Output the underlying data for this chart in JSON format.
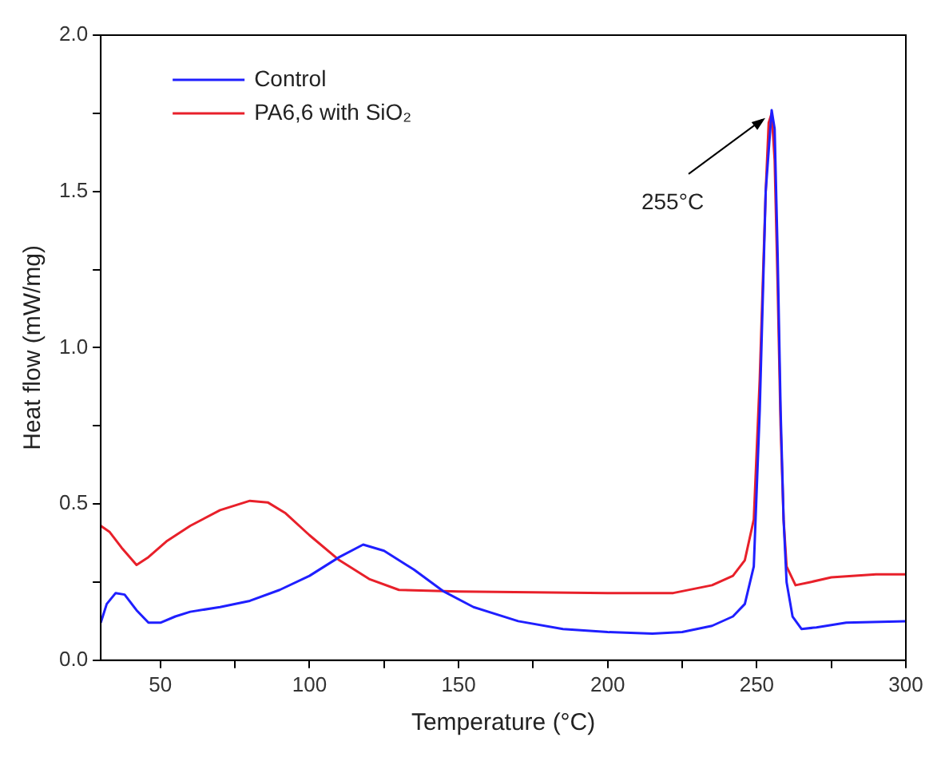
{
  "chart_data": {
    "type": "line",
    "xlabel": "Temperature (°C)",
    "ylabel": "Heat flow (mW/mg)",
    "xlim": [
      30,
      300
    ],
    "ylim": [
      0,
      2.0
    ],
    "xticks": [
      50,
      {
        "value": 75,
        "label": null
      },
      100,
      {
        "value": 125,
        "label": null
      },
      150,
      {
        "value": 175,
        "label": null
      },
      200,
      {
        "value": 225,
        "label": null
      },
      250,
      {
        "value": 275,
        "label": null
      },
      300
    ],
    "yticks": [
      {
        "value": 0,
        "label": "0.0"
      },
      {
        "value": 0.25,
        "label": null
      },
      0.5,
      {
        "value": 0.75,
        "label": null
      },
      {
        "value": 1,
        "label": "1.0"
      },
      {
        "value": 1.25,
        "label": null
      },
      1.5,
      {
        "value": 1.75,
        "label": null
      },
      {
        "value": 2,
        "label": "2.0"
      }
    ],
    "grid": false,
    "legend": "top left",
    "marker": "none",
    "line_style": "solid",
    "annotations": [
      {
        "text": "255°C",
        "x": 255,
        "y": 1.75
      }
    ],
    "series": [
      {
        "name": "Control",
        "color": "#1f1fff",
        "x": [
          30,
          32,
          35,
          38,
          42,
          46,
          50,
          55,
          60,
          70,
          80,
          90,
          100,
          110,
          118,
          125,
          135,
          145,
          155,
          170,
          185,
          200,
          215,
          225,
          235,
          242,
          246,
          249,
          251,
          253,
          255,
          256,
          257,
          258,
          259,
          260,
          262,
          265,
          270,
          280,
          300
        ],
        "values": [
          0.12,
          0.18,
          0.215,
          0.21,
          0.16,
          0.12,
          0.12,
          0.14,
          0.155,
          0.17,
          0.19,
          0.225,
          0.27,
          0.33,
          0.37,
          0.35,
          0.29,
          0.22,
          0.17,
          0.125,
          0.1,
          0.09,
          0.085,
          0.09,
          0.11,
          0.14,
          0.18,
          0.3,
          0.8,
          1.5,
          1.76,
          1.7,
          1.3,
          0.8,
          0.45,
          0.25,
          0.14,
          0.1,
          0.105,
          0.12,
          0.125
        ]
      },
      {
        "name": "PA6,6 with SiO₂",
        "color": "#e8202a",
        "x": [
          30,
          33,
          37,
          42,
          46,
          52,
          60,
          70,
          80,
          86,
          92,
          100,
          110,
          120,
          130,
          150,
          200,
          222,
          235,
          242,
          246,
          249,
          251,
          253,
          254,
          255,
          256,
          257,
          258,
          259,
          260,
          263,
          268,
          275,
          290,
          300
        ],
        "values": [
          0.43,
          0.41,
          0.36,
          0.305,
          0.33,
          0.38,
          0.43,
          0.48,
          0.51,
          0.505,
          0.47,
          0.4,
          0.32,
          0.26,
          0.225,
          0.22,
          0.215,
          0.215,
          0.24,
          0.27,
          0.32,
          0.45,
          0.9,
          1.5,
          1.72,
          1.75,
          1.6,
          1.2,
          0.75,
          0.45,
          0.3,
          0.24,
          0.25,
          0.265,
          0.275,
          0.275
        ]
      }
    ]
  }
}
